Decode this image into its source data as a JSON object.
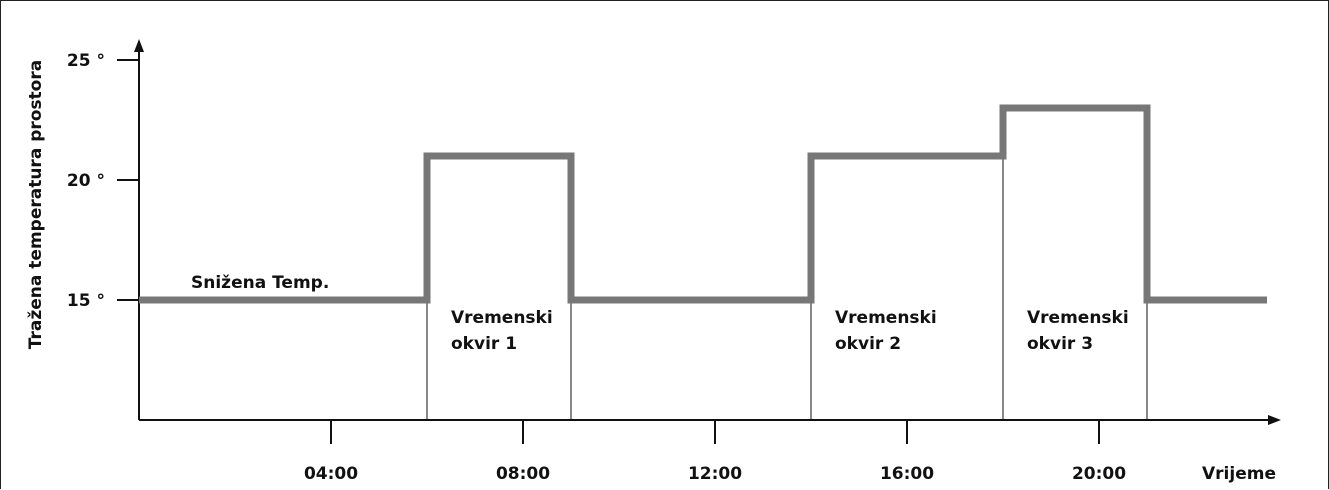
{
  "chart_data": {
    "type": "line",
    "ylabel": "Tražena temperatura prostora",
    "xlabel": "Vrijeme",
    "xlim": [
      0,
      23.6
    ],
    "ylim": [
      10.5,
      26.5
    ],
    "y_ticks": [
      15,
      20,
      25
    ],
    "y_tick_labels": [
      "15 °",
      "20 °",
      "25 °"
    ],
    "x_ticks": [
      4,
      8,
      12,
      16,
      20
    ],
    "x_tick_labels": [
      "04:00",
      "08:00",
      "12:00",
      "16:00",
      "20:00"
    ],
    "series": [
      {
        "steps": [
          {
            "from": 0,
            "to": 6,
            "temp": 15
          },
          {
            "from": 6,
            "to": 9,
            "temp": 21
          },
          {
            "from": 9,
            "to": 14,
            "temp": 15
          },
          {
            "from": 14,
            "to": 18,
            "temp": 21
          },
          {
            "from": 18,
            "to": 21,
            "temp": 23
          },
          {
            "from": 21,
            "to": 23.5,
            "temp": 15
          }
        ]
      }
    ],
    "time_windows": [
      {
        "start": 6,
        "end": 9,
        "label_lines": [
          "Vremenski",
          "okvir 1"
        ]
      },
      {
        "start": 14,
        "end": 18,
        "label_lines": [
          "Vremenski",
          "okvir 2"
        ]
      },
      {
        "start": 18,
        "end": 21,
        "label_lines": [
          "Vremenski",
          "okvir 3"
        ]
      }
    ],
    "annotations": [
      {
        "text": "Snižena Temp.",
        "x": 1,
        "y": 15
      }
    ],
    "grid": false,
    "line_color": "#777777"
  }
}
